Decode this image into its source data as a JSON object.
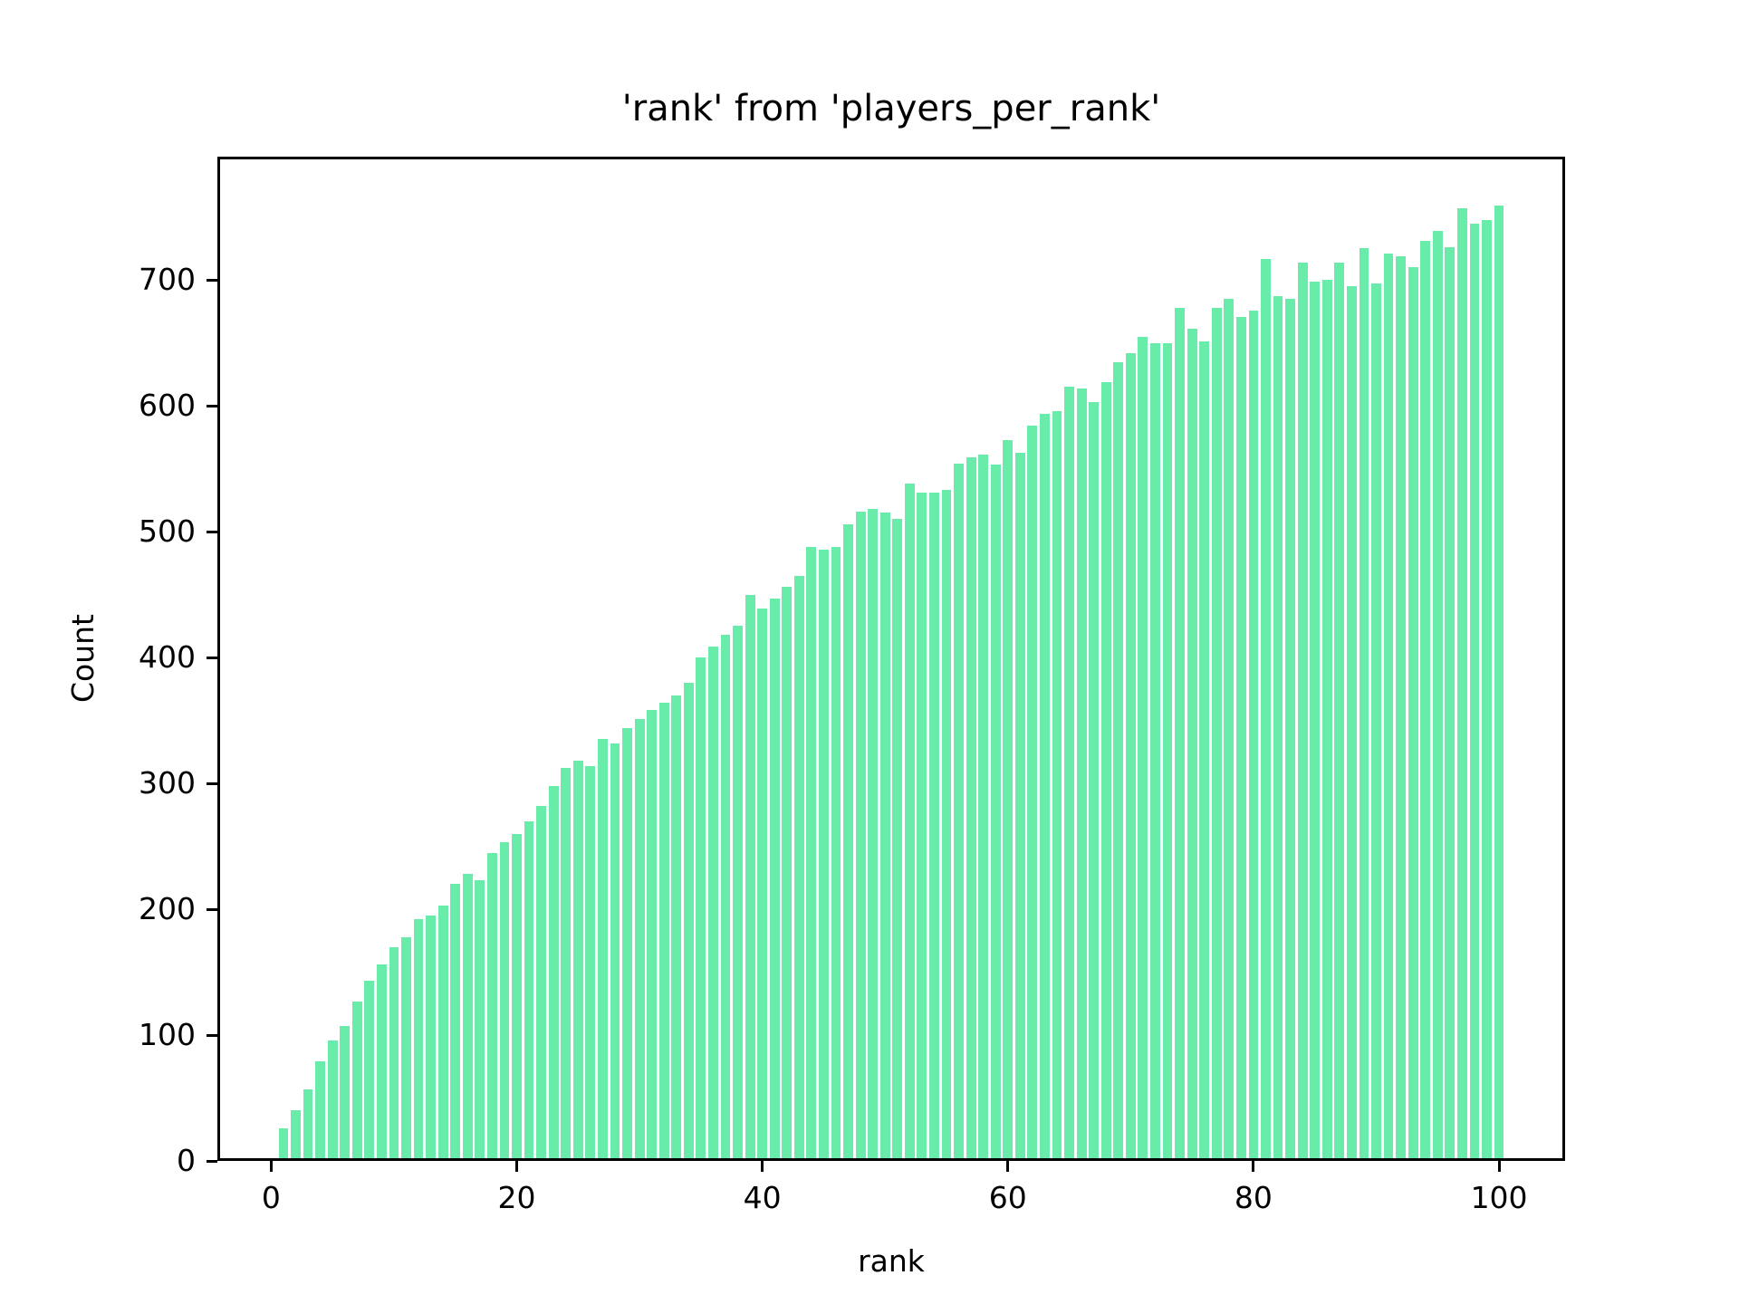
{
  "chart_data": {
    "type": "bar",
    "title": "'rank' from 'players_per_rank'",
    "xlabel": "rank",
    "ylabel": "Count",
    "x": [
      1,
      2,
      3,
      4,
      5,
      6,
      7,
      8,
      9,
      10,
      11,
      12,
      13,
      14,
      15,
      16,
      17,
      18,
      19,
      20,
      21,
      22,
      23,
      24,
      25,
      26,
      27,
      28,
      29,
      30,
      31,
      32,
      33,
      34,
      35,
      36,
      37,
      38,
      39,
      40,
      41,
      42,
      43,
      44,
      45,
      46,
      47,
      48,
      49,
      50,
      51,
      52,
      53,
      54,
      55,
      56,
      57,
      58,
      59,
      60,
      61,
      62,
      63,
      64,
      65,
      66,
      67,
      68,
      69,
      70,
      71,
      72,
      73,
      74,
      75,
      76,
      77,
      78,
      79,
      80,
      81,
      82,
      83,
      84,
      85,
      86,
      87,
      88,
      89,
      90,
      91,
      92,
      93,
      94,
      95,
      96,
      97,
      98,
      99,
      100
    ],
    "values": [
      26,
      40,
      57,
      79,
      96,
      107,
      127,
      143,
      156,
      170,
      178,
      192,
      195,
      203,
      220,
      228,
      223,
      245,
      253,
      260,
      270,
      282,
      298,
      312,
      318,
      314,
      335,
      332,
      344,
      351,
      358,
      364,
      370,
      380,
      400,
      409,
      418,
      425,
      450,
      439,
      447,
      456,
      465,
      488,
      486,
      488,
      506,
      516,
      518,
      515,
      510,
      538,
      531,
      531,
      533,
      554,
      559,
      561,
      553,
      573,
      563,
      584,
      594,
      596,
      615,
      614,
      603,
      619,
      635,
      642,
      655,
      650,
      650,
      678,
      661,
      651,
      678,
      685,
      671,
      676,
      717,
      687,
      685,
      714,
      699,
      700,
      714,
      695,
      725,
      697,
      721,
      719,
      710,
      731,
      739,
      726,
      757,
      745,
      748,
      759
    ],
    "xticks": [
      0,
      20,
      40,
      60,
      80,
      100
    ],
    "yticks": [
      0,
      100,
      200,
      300,
      400,
      500,
      600,
      700
    ],
    "xlim": [
      -4.38,
      105.38
    ],
    "ylim": [
      0,
      798
    ],
    "bar_width": 0.8,
    "bar_color": "#69ebaa",
    "axis_color": "#000000",
    "background_color": "#ffffff",
    "grid": false,
    "legend": null
  }
}
